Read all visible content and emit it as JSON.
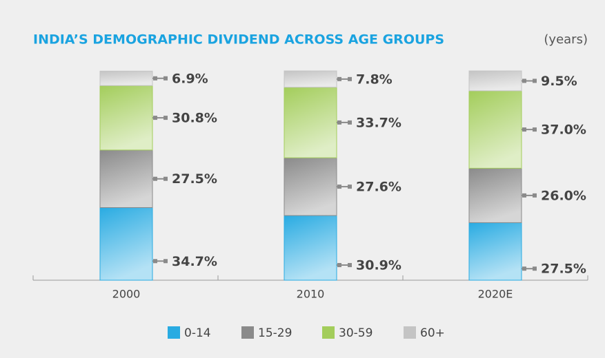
{
  "chart_data": {
    "type": "stacked_bar",
    "title": "INDIA’S DEMOGRAPHIC DIVIDEND ACROSS AGE GROUPS",
    "subtitle": "(years)",
    "categories": [
      "2000",
      "2010",
      "2020E"
    ],
    "series": [
      {
        "name": "0-14",
        "color": "#29abe2",
        "values": [
          34.7,
          30.9,
          27.5
        ],
        "value_labels": [
          "34.7%",
          "30.9%",
          "27.5%"
        ]
      },
      {
        "name": "15-29",
        "color": "#8a8a8a",
        "values": [
          27.5,
          27.6,
          26.0
        ],
        "value_labels": [
          "27.5%",
          "27.6%",
          "26.0%"
        ]
      },
      {
        "name": "30-59",
        "color": "#a3cd5b",
        "values": [
          30.8,
          33.7,
          37.0
        ],
        "value_labels": [
          "30.8%",
          "33.7%",
          "37.0%"
        ]
      },
      {
        "name": "60+",
        "color": "#c4c4c4",
        "values": [
          6.9,
          7.8,
          9.5
        ],
        "value_labels": [
          "6.9%",
          "7.8%",
          "9.5%"
        ]
      }
    ],
    "ylim": [
      0,
      100
    ],
    "legend": "bottom"
  }
}
